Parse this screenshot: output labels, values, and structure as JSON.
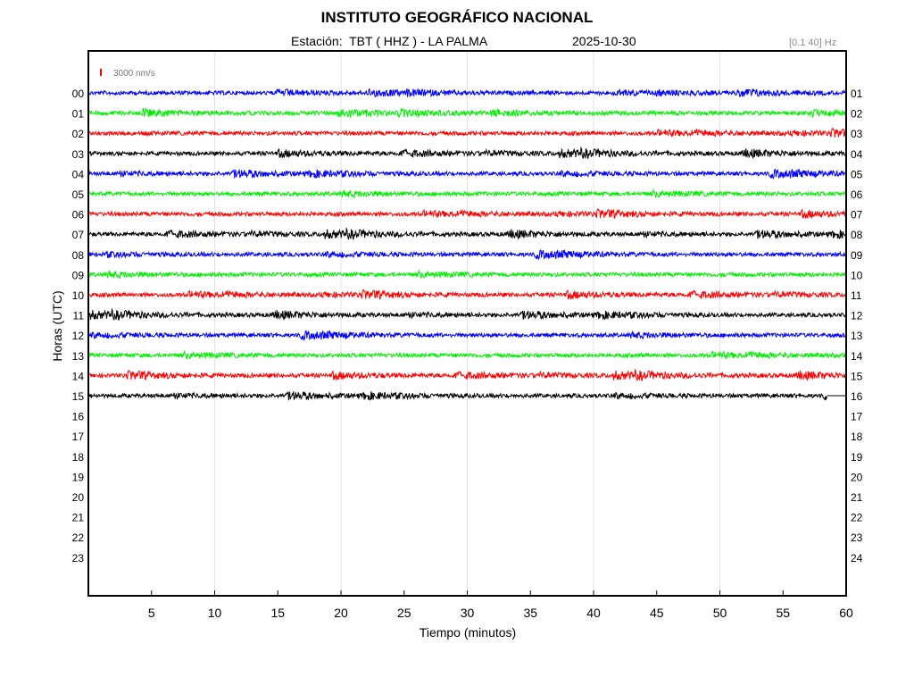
{
  "header": {
    "title": "INSTITUTO GEOGRÁFICO NACIONAL",
    "station_label": "Estación:  TBT ( HHZ ) - LA PALMA",
    "date": "2025-10-30",
    "filter_band": "[0.1 40]",
    "filter_unit": "Hz"
  },
  "scale": {
    "label": "3000 nm/s",
    "color": "#ff0000"
  },
  "chart_data": {
    "type": "line",
    "title": "INSTITUTO GEOGRÁFICO NACIONAL",
    "xlabel": "Tiempo (minutos)",
    "ylabel": "Horas (UTC)",
    "xlim": [
      0,
      60
    ],
    "x_ticks": [
      "5",
      "10",
      "15",
      "20",
      "25",
      "30",
      "35",
      "40",
      "45",
      "50",
      "55",
      "60"
    ],
    "left_hour_labels": [
      "00",
      "01",
      "02",
      "03",
      "04",
      "05",
      "06",
      "07",
      "08",
      "09",
      "10",
      "11",
      "12",
      "13",
      "14",
      "15",
      "16",
      "17",
      "18",
      "19",
      "20",
      "21",
      "22",
      "23"
    ],
    "right_hour_labels": [
      "01",
      "02",
      "03",
      "04",
      "05",
      "06",
      "07",
      "08",
      "09",
      "10",
      "11",
      "12",
      "13",
      "14",
      "15",
      "16",
      "17",
      "18",
      "19",
      "20",
      "21",
      "22",
      "23",
      "24"
    ],
    "grid": true,
    "trace_color_cycle": [
      "#0000ff",
      "#00ee00",
      "#ff0000",
      "#000000"
    ],
    "recorded_hours": 16,
    "last_trace_end_minute": 58.5
  }
}
